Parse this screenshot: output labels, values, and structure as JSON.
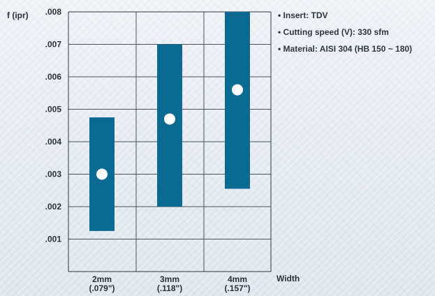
{
  "chart_data": {
    "type": "bar",
    "title": "",
    "xlabel": "Width",
    "ylabel": "f (ipr)",
    "ylim": [
      0,
      0.008
    ],
    "yticks": [
      ".001",
      ".002",
      ".003",
      ".004",
      ".005",
      ".006",
      ".007",
      ".008"
    ],
    "categories": [
      {
        "top": "2mm",
        "bottom": "(.079\")"
      },
      {
        "top": "3mm",
        "bottom": "(.118\")"
      },
      {
        "top": "4mm",
        "bottom": "(.157\")"
      }
    ],
    "series": [
      {
        "values": [
          {
            "low": 0.00125,
            "high": 0.00475,
            "point": 0.003
          },
          {
            "low": 0.002,
            "high": 0.007,
            "point": 0.0047
          },
          {
            "low": 0.00255,
            "high": 0.008,
            "point": 0.0056
          }
        ]
      }
    ],
    "notes": [
      "• Insert: TDV",
      "• Cutting speed (V): 330 sfm",
      "• Material: AISI 304 (HB 150 ~ 180)"
    ],
    "colors": {
      "bar": "#0b6a92",
      "point": "#ffffff"
    },
    "grid": true,
    "legend_placement": "top-right"
  }
}
